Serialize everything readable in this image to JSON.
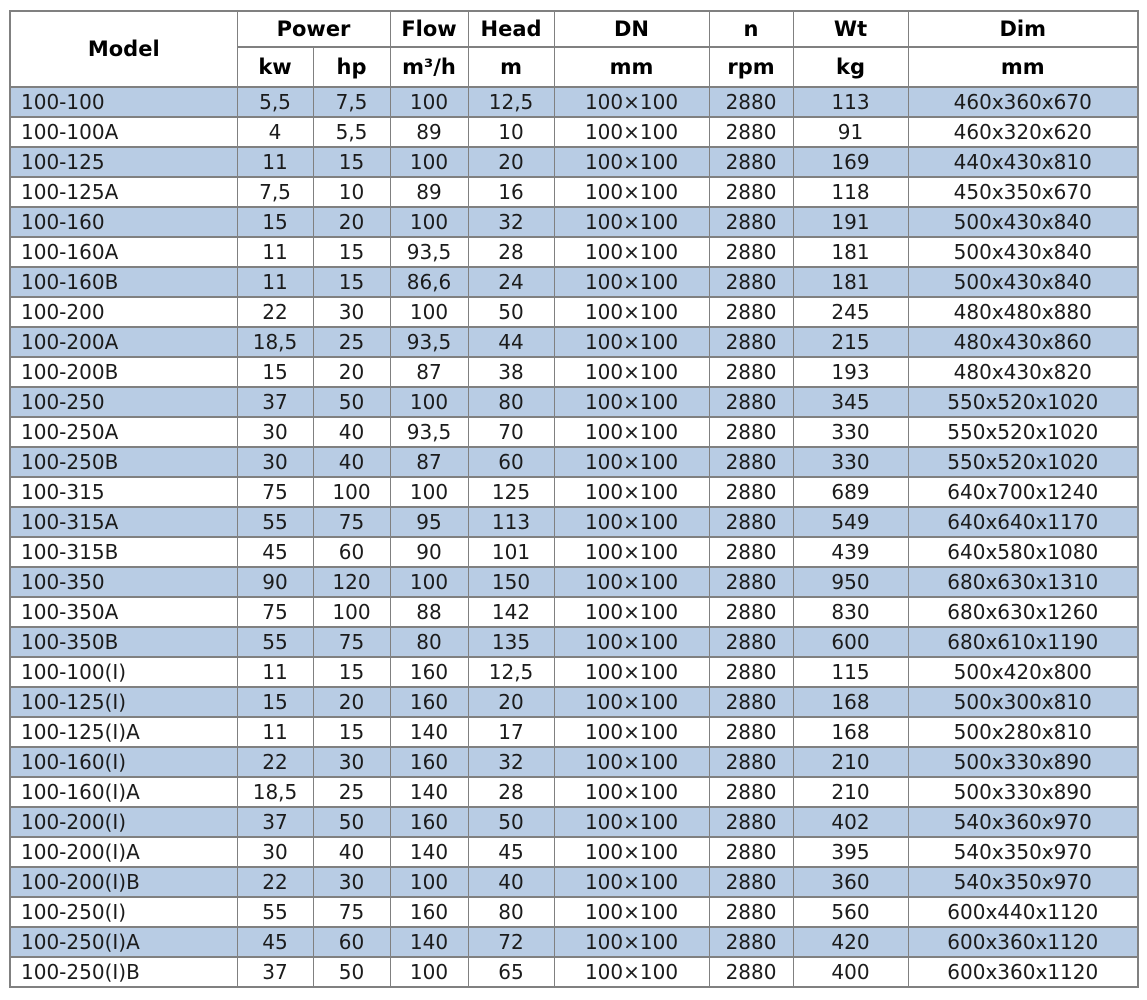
{
  "colors": {
    "row_alt_background": "#B8CCE4",
    "row_background": "#FFFFFF",
    "grid_line": "#808080",
    "text": "#1B1B1B"
  },
  "table": {
    "header": {
      "model": "Model",
      "power": "Power",
      "flow": "Flow",
      "head": "Head",
      "dn": "DN",
      "n": "n",
      "wt": "Wt",
      "dim": "Dim",
      "unit_kw": "kw",
      "unit_hp": "hp",
      "unit_flow": "m³/h",
      "unit_head": "m",
      "unit_dn": "mm",
      "unit_n": "rpm",
      "unit_wt": "kg",
      "unit_dim": "mm"
    },
    "rows": [
      {
        "model": "100-100",
        "kw": "5,5",
        "hp": "7,5",
        "flow": "100",
        "head": "12,5",
        "dn": "100×100",
        "n": "2880",
        "wt": "113",
        "dim": "460x360x670"
      },
      {
        "model": "100-100A",
        "kw": "4",
        "hp": "5,5",
        "flow": "89",
        "head": "10",
        "dn": "100×100",
        "n": "2880",
        "wt": "91",
        "dim": "460x320x620"
      },
      {
        "model": "100-125",
        "kw": "11",
        "hp": "15",
        "flow": "100",
        "head": "20",
        "dn": "100×100",
        "n": "2880",
        "wt": "169",
        "dim": "440x430x810"
      },
      {
        "model": "100-125A",
        "kw": "7,5",
        "hp": "10",
        "flow": "89",
        "head": "16",
        "dn": "100×100",
        "n": "2880",
        "wt": "118",
        "dim": "450x350x670"
      },
      {
        "model": "100-160",
        "kw": "15",
        "hp": "20",
        "flow": "100",
        "head": "32",
        "dn": "100×100",
        "n": "2880",
        "wt": "191",
        "dim": "500x430x840"
      },
      {
        "model": "100-160A",
        "kw": "11",
        "hp": "15",
        "flow": "93,5",
        "head": "28",
        "dn": "100×100",
        "n": "2880",
        "wt": "181",
        "dim": "500x430x840"
      },
      {
        "model": "100-160B",
        "kw": "11",
        "hp": "15",
        "flow": "86,6",
        "head": "24",
        "dn": "100×100",
        "n": "2880",
        "wt": "181",
        "dim": "500x430x840"
      },
      {
        "model": "100-200",
        "kw": "22",
        "hp": "30",
        "flow": "100",
        "head": "50",
        "dn": "100×100",
        "n": "2880",
        "wt": "245",
        "dim": "480x480x880"
      },
      {
        "model": "100-200A",
        "kw": "18,5",
        "hp": "25",
        "flow": "93,5",
        "head": "44",
        "dn": "100×100",
        "n": "2880",
        "wt": "215",
        "dim": "480x430x860"
      },
      {
        "model": "100-200B",
        "kw": "15",
        "hp": "20",
        "flow": "87",
        "head": "38",
        "dn": "100×100",
        "n": "2880",
        "wt": "193",
        "dim": "480x430x820"
      },
      {
        "model": "100-250",
        "kw": "37",
        "hp": "50",
        "flow": "100",
        "head": "80",
        "dn": "100×100",
        "n": "2880",
        "wt": "345",
        "dim": "550x520x1020"
      },
      {
        "model": "100-250A",
        "kw": "30",
        "hp": "40",
        "flow": "93,5",
        "head": "70",
        "dn": "100×100",
        "n": "2880",
        "wt": "330",
        "dim": "550x520x1020"
      },
      {
        "model": "100-250B",
        "kw": "30",
        "hp": "40",
        "flow": "87",
        "head": "60",
        "dn": "100×100",
        "n": "2880",
        "wt": "330",
        "dim": "550x520x1020"
      },
      {
        "model": "100-315",
        "kw": "75",
        "hp": "100",
        "flow": "100",
        "head": "125",
        "dn": "100×100",
        "n": "2880",
        "wt": "689",
        "dim": "640x700x1240"
      },
      {
        "model": "100-315A",
        "kw": "55",
        "hp": "75",
        "flow": "95",
        "head": "113",
        "dn": "100×100",
        "n": "2880",
        "wt": "549",
        "dim": "640x640x1170"
      },
      {
        "model": "100-315B",
        "kw": "45",
        "hp": "60",
        "flow": "90",
        "head": "101",
        "dn": "100×100",
        "n": "2880",
        "wt": "439",
        "dim": "640x580x1080"
      },
      {
        "model": "100-350",
        "kw": "90",
        "hp": "120",
        "flow": "100",
        "head": "150",
        "dn": "100×100",
        "n": "2880",
        "wt": "950",
        "dim": "680x630x1310"
      },
      {
        "model": "100-350A",
        "kw": "75",
        "hp": "100",
        "flow": "88",
        "head": "142",
        "dn": "100×100",
        "n": "2880",
        "wt": "830",
        "dim": "680x630x1260"
      },
      {
        "model": "100-350B",
        "kw": "55",
        "hp": "75",
        "flow": "80",
        "head": "135",
        "dn": "100×100",
        "n": "2880",
        "wt": "600",
        "dim": "680x610x1190"
      },
      {
        "model": "100-100(I)",
        "kw": "11",
        "hp": "15",
        "flow": "160",
        "head": "12,5",
        "dn": "100×100",
        "n": "2880",
        "wt": "115",
        "dim": "500x420x800"
      },
      {
        "model": "100-125(I)",
        "kw": "15",
        "hp": "20",
        "flow": "160",
        "head": "20",
        "dn": "100×100",
        "n": "2880",
        "wt": "168",
        "dim": "500x300x810"
      },
      {
        "model": "100-125(I)A",
        "kw": "11",
        "hp": "15",
        "flow": "140",
        "head": "17",
        "dn": "100×100",
        "n": "2880",
        "wt": "168",
        "dim": "500x280x810"
      },
      {
        "model": "100-160(I)",
        "kw": "22",
        "hp": "30",
        "flow": "160",
        "head": "32",
        "dn": "100×100",
        "n": "2880",
        "wt": "210",
        "dim": "500x330x890"
      },
      {
        "model": "100-160(I)A",
        "kw": "18,5",
        "hp": "25",
        "flow": "140",
        "head": "28",
        "dn": "100×100",
        "n": "2880",
        "wt": "210",
        "dim": "500x330x890"
      },
      {
        "model": "100-200(I)",
        "kw": "37",
        "hp": "50",
        "flow": "160",
        "head": "50",
        "dn": "100×100",
        "n": "2880",
        "wt": "402",
        "dim": "540x360x970"
      },
      {
        "model": "100-200(I)A",
        "kw": "30",
        "hp": "40",
        "flow": "140",
        "head": "45",
        "dn": "100×100",
        "n": "2880",
        "wt": "395",
        "dim": "540x350x970"
      },
      {
        "model": "100-200(I)B",
        "kw": "22",
        "hp": "30",
        "flow": "100",
        "head": "40",
        "dn": "100×100",
        "n": "2880",
        "wt": "360",
        "dim": "540x350x970"
      },
      {
        "model": "100-250(I)",
        "kw": "55",
        "hp": "75",
        "flow": "160",
        "head": "80",
        "dn": "100×100",
        "n": "2880",
        "wt": "560",
        "dim": "600x440x1120"
      },
      {
        "model": "100-250(I)A",
        "kw": "45",
        "hp": "60",
        "flow": "140",
        "head": "72",
        "dn": "100×100",
        "n": "2880",
        "wt": "420",
        "dim": "600x360x1120"
      },
      {
        "model": "100-250(I)B",
        "kw": "37",
        "hp": "50",
        "flow": "100",
        "head": "65",
        "dn": "100×100",
        "n": "2880",
        "wt": "400",
        "dim": "600x360x1120"
      }
    ]
  }
}
